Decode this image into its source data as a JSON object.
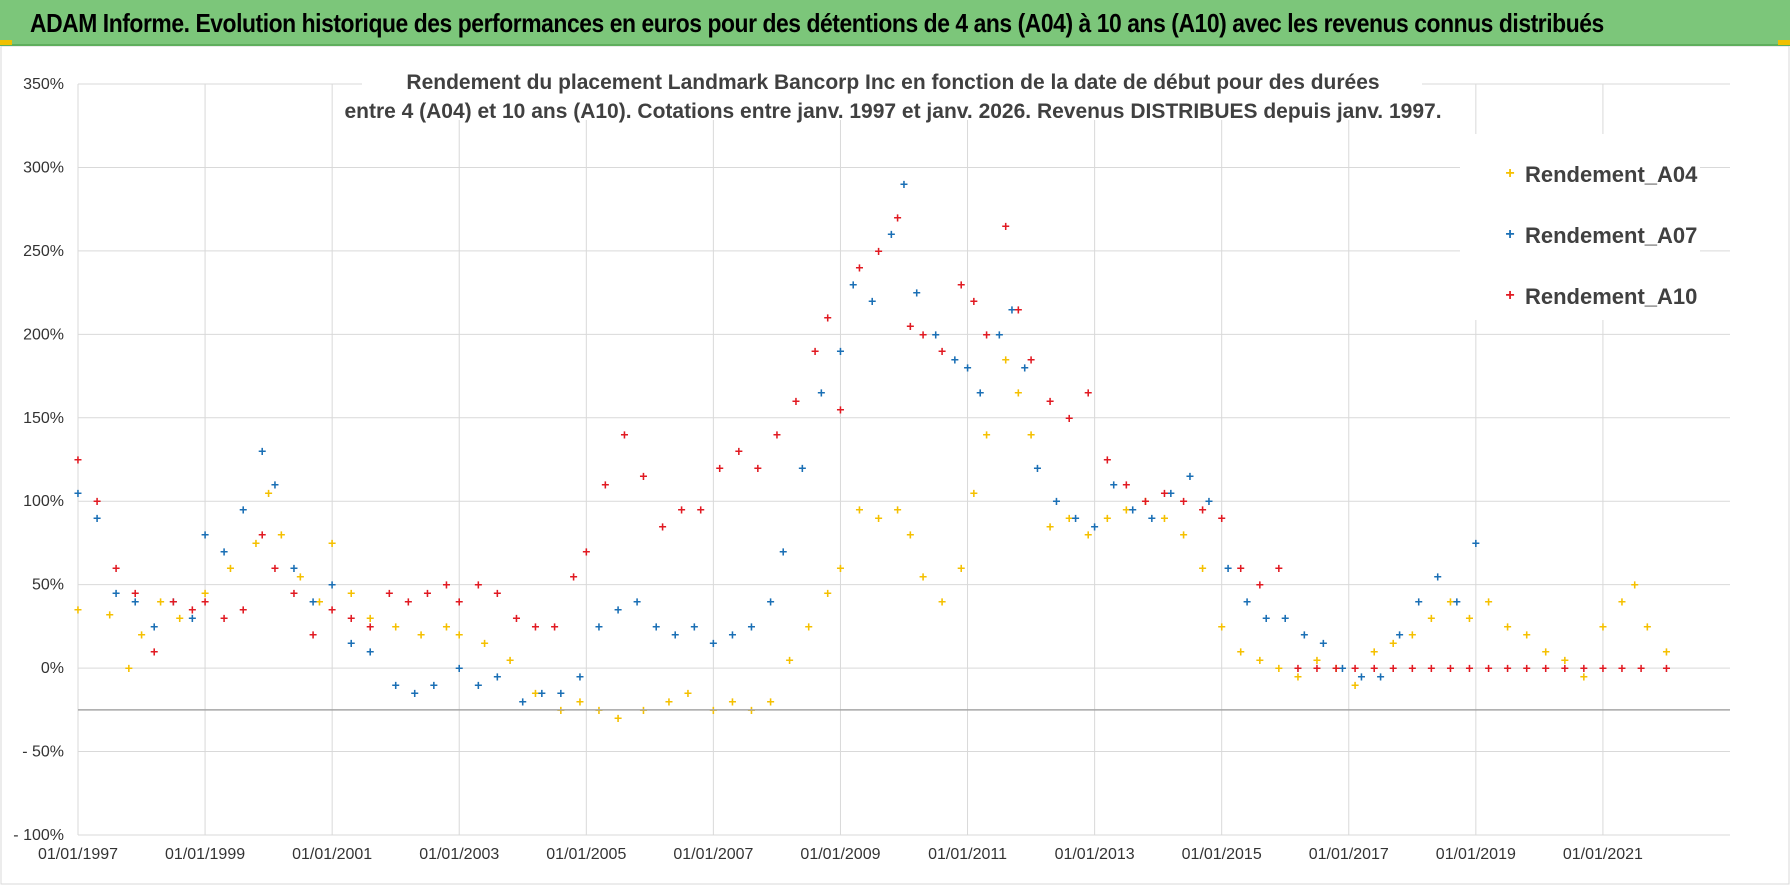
{
  "banner": {
    "title": "ADAM Informe. Evolution historique des performances en euros pour des détentions de 4 ans (A04) à 10 ans (A10) avec les revenus connus distribués"
  },
  "chart_data": {
    "type": "scatter",
    "title_line1": "Rendement du placement Landmark Bancorp Inc en fonction de la date de début pour des durées",
    "title_line2": "entre 4 (A04) et 10 ans (A10).  Cotations entre janv. 1997 et janv. 2026. Revenus DISTRIBUES  depuis janv. 1997.",
    "xlabel": "",
    "ylabel": "",
    "xlim": [
      1997.0,
      2023.0
    ],
    "ylim": [
      -100,
      350
    ],
    "x_tick_labels": [
      "01/01/1997",
      "01/01/1999",
      "01/01/2001",
      "01/01/2003",
      "01/01/2005",
      "01/01/2007",
      "01/01/2009",
      "01/01/2011",
      "01/01/2013",
      "01/01/2015",
      "01/01/2017",
      "01/01/2019",
      "01/01/2021"
    ],
    "x_tick_values": [
      1997,
      1999,
      2001,
      2003,
      2005,
      2007,
      2009,
      2011,
      2013,
      2015,
      2017,
      2019,
      2021
    ],
    "y_tick_labels": [
      "- 100%",
      "- 50%",
      "0%",
      "50%",
      "100%",
      "150%",
      "200%",
      "250%",
      "300%",
      "350%"
    ],
    "y_tick_values": [
      -100,
      -50,
      0,
      50,
      100,
      150,
      200,
      250,
      300,
      350
    ],
    "legend": [
      "Rendement_A04",
      "Rendement_A07",
      "Rendement_A10"
    ],
    "series": [
      {
        "name": "Rendement_A04",
        "color": "#f5c000",
        "x": [
          1997.0,
          1997.5,
          1997.8,
          1998.0,
          1998.3,
          1998.6,
          1999.0,
          1999.4,
          1999.8,
          2000.0,
          2000.2,
          2000.5,
          2000.8,
          2001.0,
          2001.3,
          2001.6,
          2002.0,
          2002.4,
          2002.8,
          2003.0,
          2003.4,
          2003.8,
          2004.2,
          2004.6,
          2004.9,
          2005.2,
          2005.5,
          2005.9,
          2006.3,
          2006.6,
          2007.0,
          2007.3,
          2007.6,
          2007.9,
          2008.2,
          2008.5,
          2008.8,
          2009.0,
          2009.3,
          2009.6,
          2009.9,
          2010.1,
          2010.3,
          2010.6,
          2010.9,
          2011.1,
          2011.3,
          2011.6,
          2011.8,
          2012.0,
          2012.3,
          2012.6,
          2012.9,
          2013.2,
          2013.5,
          2013.8,
          2014.1,
          2014.4,
          2014.7,
          2015.0,
          2015.3,
          2015.6,
          2015.9,
          2016.2,
          2016.5,
          2016.8,
          2017.1,
          2017.4,
          2017.7,
          2018.0,
          2018.3,
          2018.6,
          2018.9,
          2019.2,
          2019.5,
          2019.8,
          2020.1,
          2020.4,
          2020.7,
          2021.0,
          2021.3,
          2021.5,
          2021.7,
          2022.0
        ],
        "y": [
          35,
          32,
          0,
          20,
          40,
          30,
          45,
          60,
          75,
          105,
          80,
          55,
          40,
          75,
          45,
          30,
          25,
          20,
          25,
          20,
          15,
          5,
          -15,
          -25,
          -20,
          -25,
          -30,
          -25,
          -20,
          -15,
          -25,
          -20,
          -25,
          -20,
          5,
          25,
          45,
          60,
          95,
          90,
          95,
          80,
          55,
          40,
          60,
          105,
          140,
          185,
          165,
          140,
          85,
          90,
          80,
          90,
          95,
          100,
          90,
          80,
          60,
          25,
          10,
          5,
          0,
          -5,
          5,
          0,
          -10,
          10,
          15,
          20,
          30,
          40,
          30,
          40,
          25,
          20,
          10,
          5,
          -5,
          25,
          40,
          50,
          25,
          10
        ]
      },
      {
        "name": "Rendement_A07",
        "color": "#1a6fb5",
        "x": [
          1997.0,
          1997.3,
          1997.6,
          1997.9,
          1998.2,
          1998.5,
          1998.8,
          1999.0,
          1999.3,
          1999.6,
          1999.9,
          2000.1,
          2000.4,
          2000.7,
          2001.0,
          2001.3,
          2001.6,
          2002.0,
          2002.3,
          2002.6,
          2003.0,
          2003.3,
          2003.6,
          2004.0,
          2004.3,
          2004.6,
          2004.9,
          2005.2,
          2005.5,
          2005.8,
          2006.1,
          2006.4,
          2006.7,
          2007.0,
          2007.3,
          2007.6,
          2007.9,
          2008.1,
          2008.4,
          2008.7,
          2009.0,
          2009.2,
          2009.5,
          2009.8,
          2010.0,
          2010.2,
          2010.5,
          2010.8,
          2011.0,
          2011.2,
          2011.5,
          2011.7,
          2011.9,
          2012.1,
          2012.4,
          2012.7,
          2013.0,
          2013.3,
          2013.6,
          2013.9,
          2014.2,
          2014.5,
          2014.8,
          2015.1,
          2015.4,
          2015.7,
          2016.0,
          2016.3,
          2016.6,
          2016.9,
          2017.2,
          2017.5,
          2017.8,
          2018.1,
          2018.4,
          2018.7,
          2019.0
        ],
        "y": [
          105,
          90,
          45,
          40,
          25,
          40,
          30,
          80,
          70,
          95,
          130,
          110,
          60,
          40,
          50,
          15,
          10,
          -10,
          -15,
          -10,
          0,
          -10,
          -5,
          -20,
          -15,
          -15,
          -5,
          25,
          35,
          40,
          25,
          20,
          25,
          15,
          20,
          25,
          40,
          70,
          120,
          165,
          190,
          230,
          220,
          260,
          290,
          225,
          200,
          185,
          180,
          165,
          200,
          215,
          180,
          120,
          100,
          90,
          85,
          110,
          95,
          90,
          105,
          115,
          100,
          60,
          40,
          30,
          30,
          20,
          15,
          0,
          -5,
          -5,
          20,
          40,
          55,
          40,
          75
        ]
      },
      {
        "name": "Rendement_A10",
        "color": "#e11a22",
        "x": [
          1997.0,
          1997.3,
          1997.6,
          1997.9,
          1998.2,
          1998.5,
          1998.8,
          1999.0,
          1999.3,
          1999.6,
          1999.9,
          2000.1,
          2000.4,
          2000.7,
          2001.0,
          2001.3,
          2001.6,
          2001.9,
          2002.2,
          2002.5,
          2002.8,
          2003.0,
          2003.3,
          2003.6,
          2003.9,
          2004.2,
          2004.5,
          2004.8,
          2005.0,
          2005.3,
          2005.6,
          2005.9,
          2006.2,
          2006.5,
          2006.8,
          2007.1,
          2007.4,
          2007.7,
          2008.0,
          2008.3,
          2008.6,
          2008.8,
          2009.0,
          2009.3,
          2009.6,
          2009.9,
          2010.1,
          2010.3,
          2010.6,
          2010.9,
          2011.1,
          2011.3,
          2011.6,
          2011.8,
          2012.0,
          2012.3,
          2012.6,
          2012.9,
          2013.2,
          2013.5,
          2013.8,
          2014.1,
          2014.4,
          2014.7,
          2015.0,
          2015.3,
          2015.6,
          2015.9,
          2016.2,
          2016.5,
          2016.8,
          2017.1,
          2017.4,
          2017.7,
          2018.0,
          2018.3,
          2018.6,
          2018.9,
          2019.2,
          2019.5,
          2019.8,
          2020.1,
          2020.4,
          2020.7,
          2021.0,
          2021.3,
          2021.6,
          2022.0
        ],
        "y": [
          125,
          100,
          60,
          45,
          10,
          40,
          35,
          40,
          30,
          35,
          80,
          60,
          45,
          20,
          35,
          30,
          25,
          45,
          40,
          45,
          50,
          40,
          50,
          45,
          30,
          25,
          25,
          55,
          70,
          110,
          140,
          115,
          85,
          95,
          95,
          120,
          130,
          120,
          140,
          160,
          190,
          210,
          155,
          240,
          250,
          270,
          205,
          200,
          190,
          230,
          220,
          200,
          265,
          215,
          185,
          160,
          150,
          165,
          125,
          110,
          100,
          105,
          100,
          95,
          90,
          60,
          50,
          60,
          0,
          0,
          0,
          0,
          0,
          0,
          0,
          0,
          0,
          0,
          0,
          0,
          0,
          0,
          0,
          0,
          0,
          0,
          0,
          0
        ]
      }
    ]
  }
}
